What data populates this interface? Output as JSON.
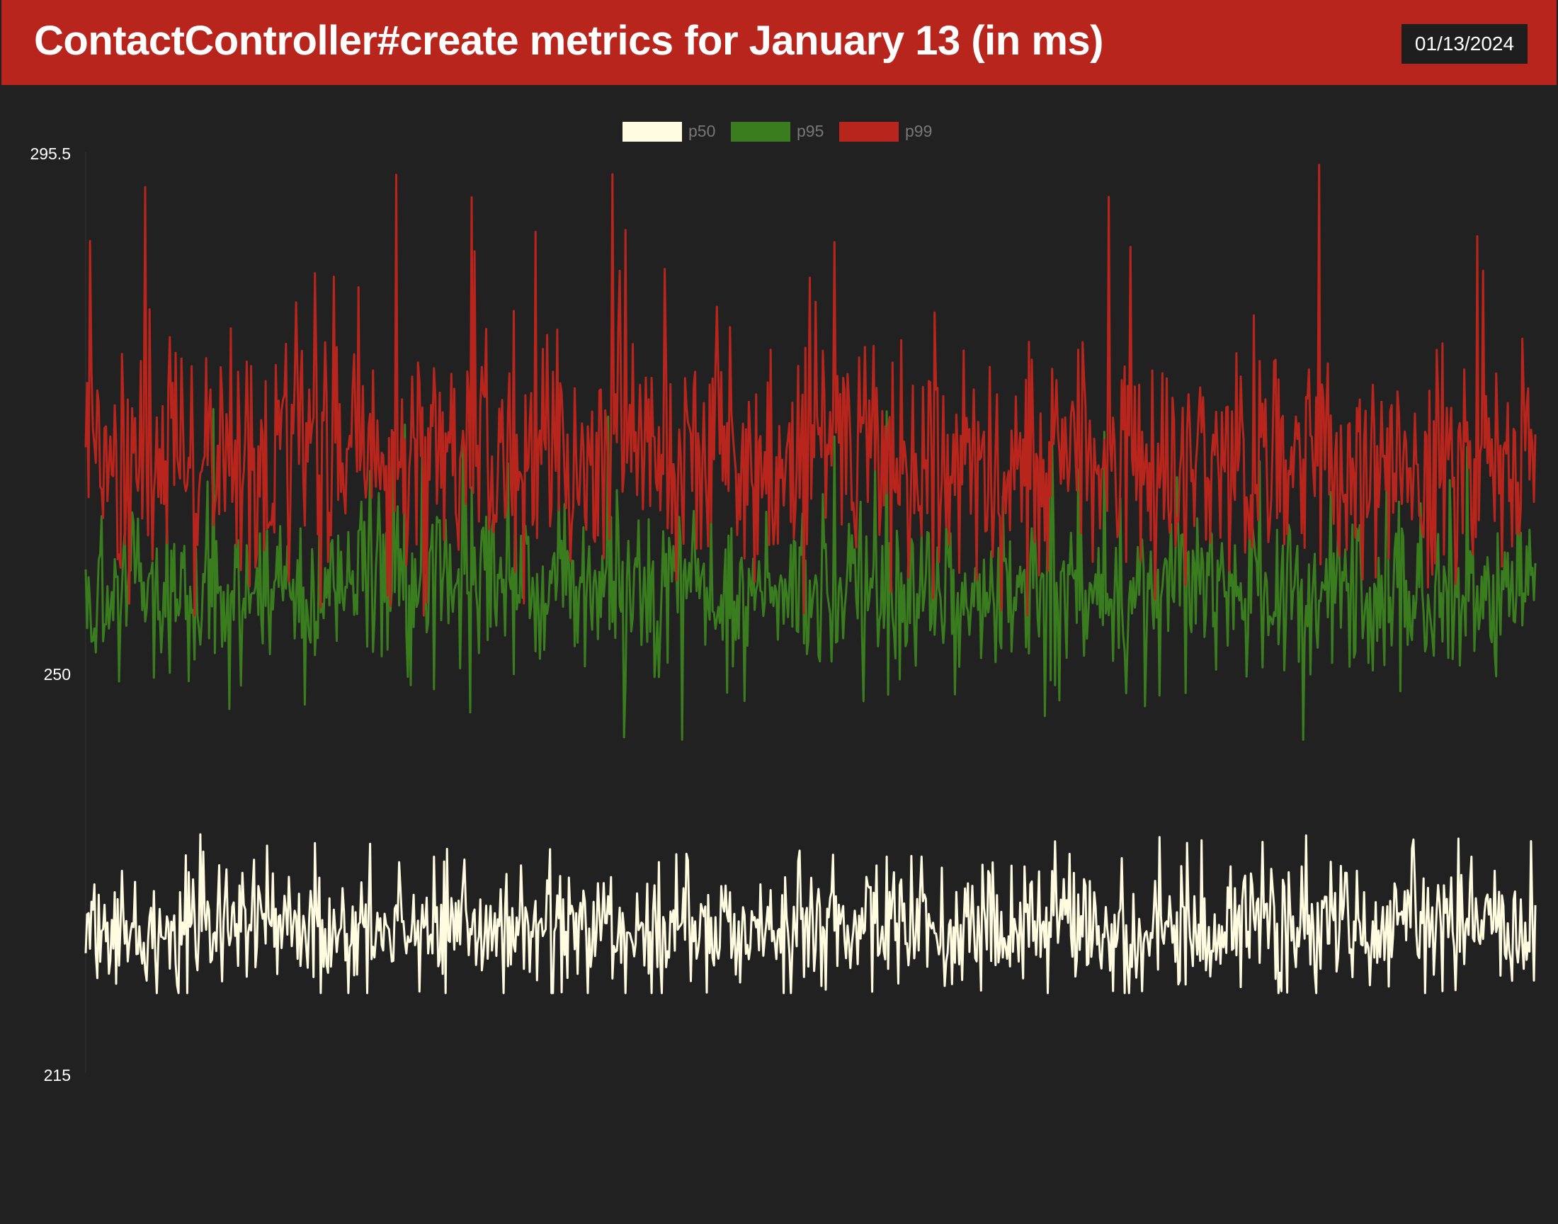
{
  "header": {
    "title": "ContactController#create metrics for January 13 (in ms)",
    "date": "01/13/2024",
    "bg_color": "#b8251c"
  },
  "chart_data": {
    "type": "line",
    "title": "ContactController#create metrics for January 13 (in ms)",
    "xlabel": "",
    "ylabel": "",
    "ylim": [
      215,
      295.5
    ],
    "y_ticks": [
      "295.5",
      "250",
      "215"
    ],
    "grid": false,
    "legend_position": "top-center",
    "points_per_series": 1000,
    "series": [
      {
        "name": "p50",
        "color": "#fffbe0",
        "typical": 227.5,
        "low": 222,
        "high": 236.5,
        "spread": 2.7
      },
      {
        "name": "p95",
        "color": "#3a7d1f",
        "typical": 257,
        "low": 243.5,
        "high": 273.5,
        "spread": 3.6
      },
      {
        "name": "p99",
        "color": "#b8251c",
        "typical": 269,
        "low": 255,
        "high": 295.5,
        "spread": 5.2
      }
    ]
  }
}
